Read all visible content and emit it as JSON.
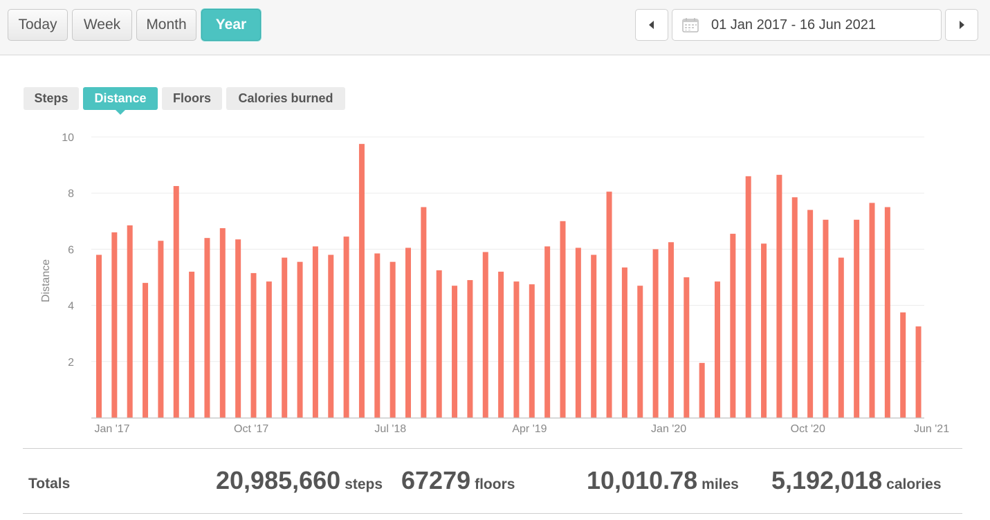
{
  "toolbar": {
    "ranges": [
      "Today",
      "Week",
      "Month",
      "Year"
    ],
    "active_range": "Year",
    "date_range": "01 Jan 2017 - 16 Jun 2021"
  },
  "tabs": [
    "Steps",
    "Distance",
    "Floors",
    "Calories burned"
  ],
  "active_tab": "Distance",
  "colors": {
    "accent": "#4cc3c1",
    "bar": "#f77a68"
  },
  "chart_data": {
    "type": "bar",
    "ylabel": "Distance",
    "xlabel": "",
    "ylim": [
      0,
      10
    ],
    "yticks": [
      2,
      4,
      6,
      8,
      10
    ],
    "grid": true,
    "x_tick_labels": [
      {
        "index": 0,
        "label": "Jan '17"
      },
      {
        "index": 9,
        "label": "Oct '17"
      },
      {
        "index": 18,
        "label": "Jul '18"
      },
      {
        "index": 27,
        "label": "Apr '19"
      },
      {
        "index": 36,
        "label": "Jan '20"
      },
      {
        "index": 45,
        "label": "Oct '20"
      },
      {
        "index": 53,
        "label": "Jun '21"
      }
    ],
    "values": [
      5.8,
      6.6,
      6.85,
      4.8,
      6.3,
      8.25,
      5.2,
      6.4,
      6.75,
      6.35,
      5.15,
      4.85,
      5.7,
      5.55,
      6.1,
      5.8,
      6.45,
      9.75,
      5.85,
      5.55,
      6.05,
      7.5,
      5.25,
      4.7,
      4.9,
      5.9,
      5.2,
      4.85,
      4.75,
      6.1,
      7.0,
      6.05,
      5.8,
      8.05,
      5.35,
      4.7,
      6.0,
      6.25,
      5.0,
      1.95,
      4.85,
      6.55,
      8.6,
      6.2,
      8.65,
      7.85,
      7.4,
      7.05,
      5.7,
      7.05,
      7.65,
      7.5,
      3.75,
      3.25
    ]
  },
  "totals": {
    "label": "Totals",
    "steps": "20,985,660",
    "steps_unit": "steps",
    "floors": "67279",
    "floors_unit": "floors",
    "miles": "10,010.78",
    "miles_unit": "miles",
    "calories": "5,192,018",
    "calories_unit": "calories"
  }
}
